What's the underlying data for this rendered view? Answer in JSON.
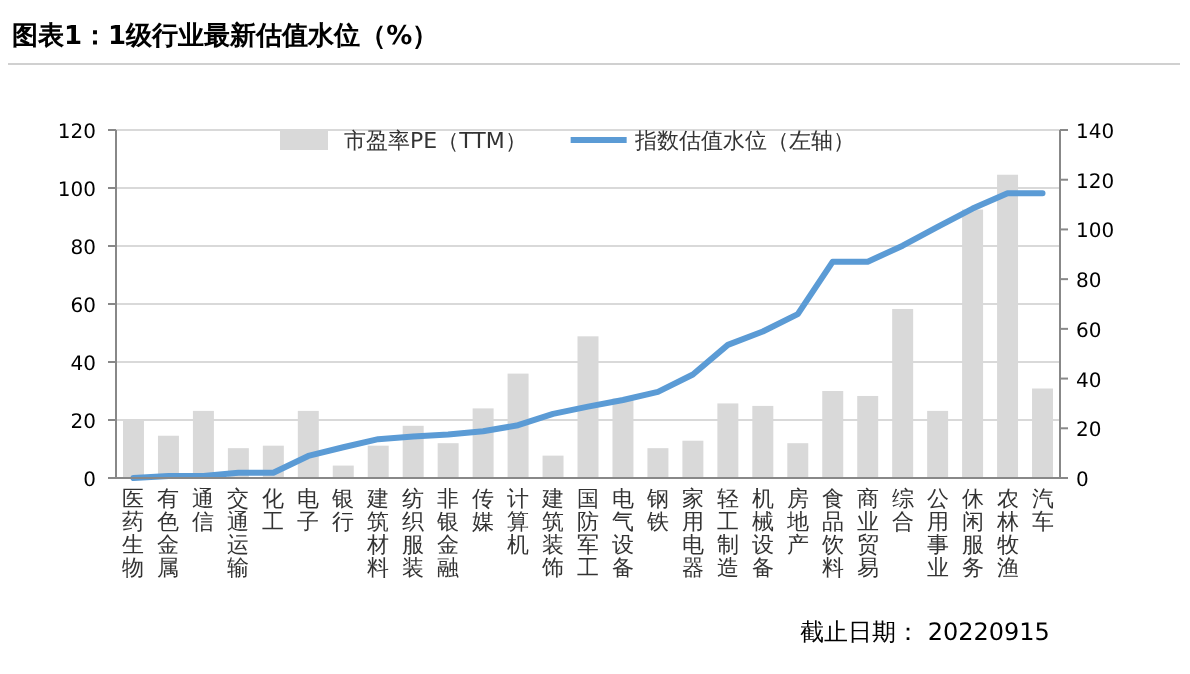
{
  "chart_data": {
    "type": "bar",
    "title": "图表1：1级行业最新估值水位（%）",
    "categories": [
      "医药生物",
      "有色金属",
      "通信",
      "交通运输",
      "化工",
      "电子",
      "银行",
      "建筑材料",
      "纺织服装",
      "非银金融",
      "传媒",
      "计算机",
      "建筑装饰",
      "国防军工",
      "电气设备",
      "钢铁",
      "家用电器",
      "轻工制造",
      "机械设备",
      "房地产",
      "食品饮料",
      "商业贸易",
      "综合",
      "公用事业",
      "休闲服务",
      "农林牧渔",
      "汽车"
    ],
    "series": [
      {
        "name": "市盈率PE（TTM）",
        "axis": "y2",
        "color": "#d9d9d9",
        "values": [
          23,
          17,
          27,
          12,
          13,
          27,
          5,
          13,
          21,
          14,
          28,
          42,
          9,
          57,
          32,
          12,
          15,
          30,
          29,
          14,
          35,
          33,
          68,
          27,
          108,
          122,
          36
        ]
      },
      {
        "name": "指数估值水位（左轴）",
        "type": "line",
        "axis": "y",
        "color": "#5b9bd5",
        "values": [
          0,
          0.7,
          0.7,
          1.8,
          1.8,
          7.6,
          10.6,
          13.4,
          14.3,
          15,
          16.1,
          18.2,
          22.1,
          24.6,
          26.9,
          29.7,
          35.7,
          45.9,
          50.5,
          56.5,
          74.6,
          74.6,
          80.1,
          86.6,
          92.9,
          98.2,
          98.2
        ]
      }
    ],
    "ylim": [
      0,
      120
    ],
    "yticks": [
      0,
      20,
      40,
      60,
      80,
      100,
      120
    ],
    "y2lim": [
      0,
      140
    ],
    "y2ticks": [
      0,
      20,
      40,
      60,
      80,
      100,
      120,
      140
    ],
    "grid": "y",
    "legend": "top",
    "annotations": [
      "截止日期： 20220915"
    ]
  }
}
